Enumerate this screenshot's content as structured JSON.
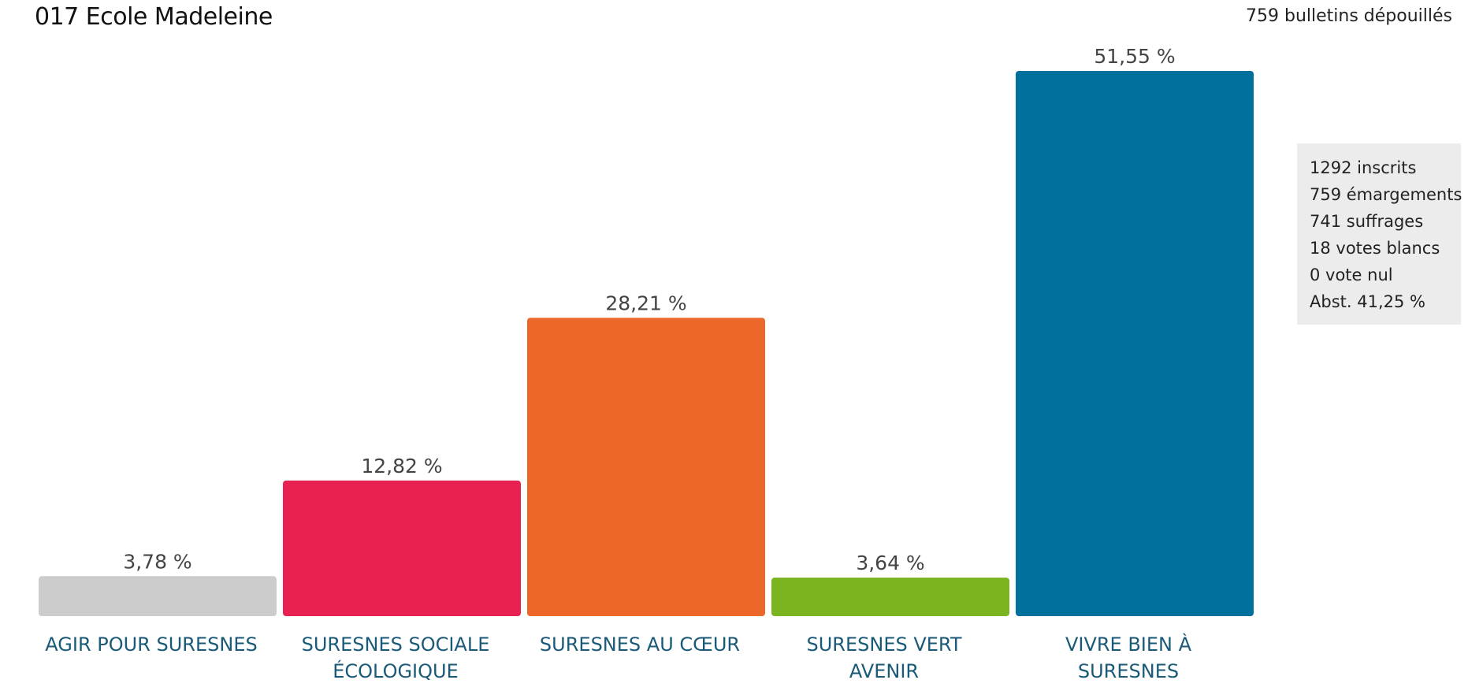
{
  "header": {
    "title": "017 Ecole Madeleine",
    "ballots_counted": "759 bulletins dépouillés"
  },
  "stats": [
    "1292 inscrits",
    "759 émargements",
    "741 suffrages",
    "18 votes blancs",
    "0 vote nul",
    "Abst. 41,25 %"
  ],
  "chart_data": {
    "type": "bar",
    "categories": [
      "AGIR POUR SURESNES",
      "SURESNES SOCIALE ÉCOLOGIQUE",
      "SURESNES AU CŒUR",
      "SURESNES VERT AVENIR",
      "VIVRE BIEN À SURESNES"
    ],
    "category_lines": [
      [
        "AGIR POUR SURESNES"
      ],
      [
        "SURESNES SOCIALE",
        "ÉCOLOGIQUE"
      ],
      [
        "SURESNES AU CŒUR"
      ],
      [
        "SURESNES VERT",
        "AVENIR"
      ],
      [
        "VIVRE BIEN À",
        "SURESNES"
      ]
    ],
    "values": [
      3.78,
      12.82,
      28.21,
      3.64,
      51.55
    ],
    "value_labels": [
      "3,78 %",
      "12,82 %",
      "28,21 %",
      "3,64 %",
      "51,55 %"
    ],
    "colors": [
      "#cccccc",
      "#e92153",
      "#ec682a",
      "#7ab521",
      "#02709d"
    ],
    "ylim": [
      0,
      51.55
    ],
    "grid": false,
    "label_color": "#1a5a78"
  }
}
